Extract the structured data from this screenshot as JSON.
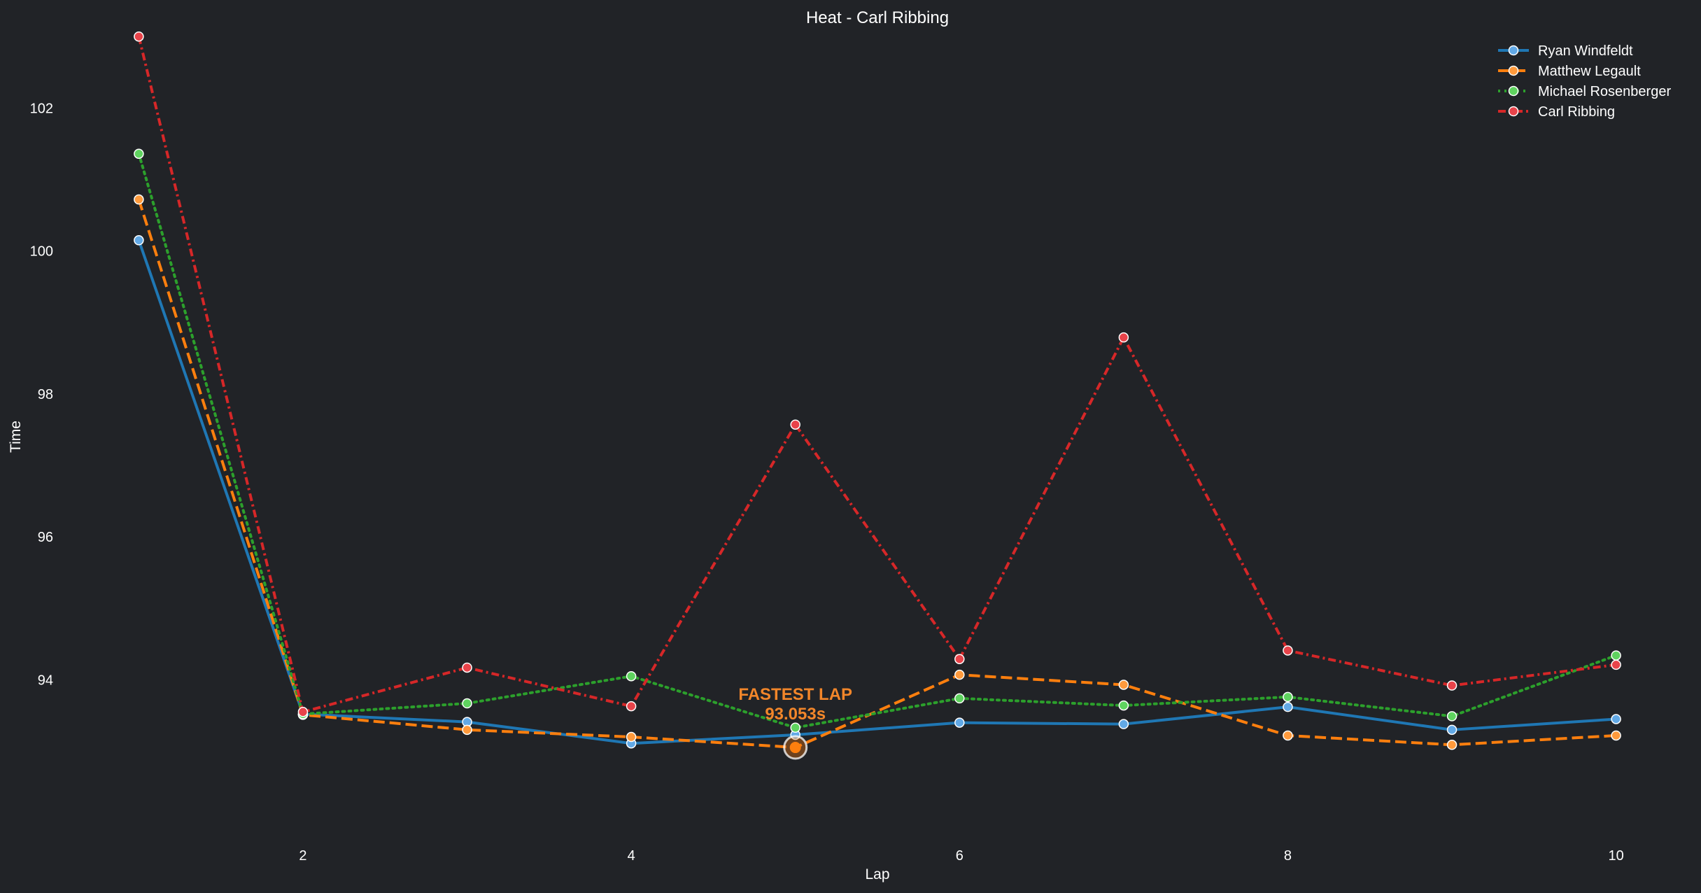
{
  "chart_data": {
    "type": "line",
    "title": "Heat - Carl Ribbing",
    "xlabel": "Lap",
    "ylabel": "Time",
    "xlim": [
      0.7,
      10.3
    ],
    "ylim": [
      91.8,
      103.1
    ],
    "x": [
      1,
      2,
      3,
      4,
      5,
      6,
      7,
      8,
      9,
      10
    ],
    "xticks": [
      2,
      4,
      6,
      8,
      10
    ],
    "yticks": [
      94,
      96,
      98,
      100,
      102
    ],
    "grid": false,
    "legend_position": "top-right",
    "series": [
      {
        "name": "Ryan Windfeldt",
        "color": "#1f77b4",
        "dash": "solid",
        "values": [
          100.15,
          93.52,
          93.41,
          93.11,
          93.23,
          93.4,
          93.38,
          93.62,
          93.3,
          93.45
        ]
      },
      {
        "name": "Matthew Legault",
        "color": "#ff7f0e",
        "dash": "dashed",
        "values": [
          100.72,
          93.51,
          93.3,
          93.2,
          93.053,
          94.07,
          93.93,
          93.22,
          93.09,
          93.22
        ]
      },
      {
        "name": "Michael Rosenberger",
        "color": "#2ca02c",
        "dash": "dotted",
        "values": [
          101.36,
          93.52,
          93.67,
          94.05,
          93.33,
          93.74,
          93.64,
          93.76,
          93.49,
          94.34
        ]
      },
      {
        "name": "Carl Ribbing",
        "color": "#d62728",
        "dash": "dashdot",
        "values": [
          103.0,
          93.55,
          94.17,
          93.63,
          97.57,
          94.29,
          98.79,
          94.41,
          93.92,
          94.21
        ]
      }
    ],
    "annotation": {
      "label": "FASTEST LAP",
      "value_text": "93.053s",
      "x": 5,
      "y": 93.053,
      "series": "Matthew Legault",
      "color": "#f2862a"
    }
  }
}
